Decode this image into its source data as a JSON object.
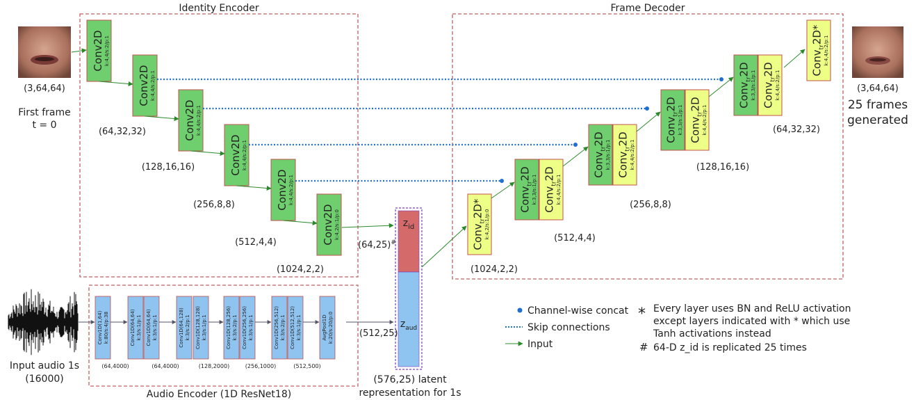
{
  "titles": {
    "identity_encoder": "Identity Encoder",
    "frame_decoder": "Frame Decoder",
    "audio_encoder": "Audio Encoder (1D ResNet18)"
  },
  "input_frame": {
    "shape": "(3,64,64)",
    "caption_line1": "First frame",
    "caption_line2": "t = 0"
  },
  "output_frames": {
    "shape": "(3,64,64)",
    "caption_line1": "25 frames",
    "caption_line2": "generated"
  },
  "input_audio": {
    "caption_line1": "Input audio 1s",
    "caption_line2": "(16000)"
  },
  "encoder_layers": [
    {
      "name": "Conv2D",
      "params": "k:4,4/s:2/p:1"
    },
    {
      "name": "Conv2D",
      "params": "k:4,4/s:2/p:1"
    },
    {
      "name": "Conv2D",
      "params": "k:4,4/s:2/p:1"
    },
    {
      "name": "Conv2D",
      "params": "k:4,4/s:2/p:1"
    },
    {
      "name": "Conv2D",
      "params": "k:4,4/s:2/p:1"
    },
    {
      "name": "Conv2D",
      "params": "k:4,2/s:1/p:0"
    }
  ],
  "encoder_dims": [
    "(64,32,32)",
    "(128,16,16)",
    "(256,8,8)",
    "(512,4,4)",
    "(1024,2,2)"
  ],
  "decoder_first": {
    "name": "Conv",
    "sub": "tr",
    "suffix": "2D*",
    "params": "k:4,2/s:1/p:0"
  },
  "decoder_pairs": [
    {
      "a_params": "k:3,3/s:1/p:1",
      "b_params": "k:4,4/s:2/p:1"
    },
    {
      "a_params": "k:3,3/s:1/p:1",
      "b_params": "k:4,4/s:2/p:1"
    },
    {
      "a_params": "k:3,3/s:1/p:1",
      "b_params": "k:4,4/s:2/p:1"
    },
    {
      "a_params": "k:3,3/s:1/p:1",
      "b_params": "k:4,4/s:2/p:1"
    }
  ],
  "decoder_layer_name": "Conv",
  "decoder_layer_sub": "tr",
  "decoder_layer_suffix": "2D",
  "decoder_last": {
    "name": "Conv",
    "sub": "tr",
    "suffix": "2D*",
    "params": "k:4,4/s:2/p:1"
  },
  "decoder_dims": [
    "(1024,2,2)",
    "(512,4,4)",
    "(256,8,8)",
    "(128,16,16)",
    "(64,32,32)"
  ],
  "latent": {
    "zid": "z",
    "zid_sub": "id",
    "zaud": "z",
    "zaud_sub": "aud",
    "zid_dim": "(64,25)",
    "zid_mark": "#",
    "zaud_dim": "(512,25)",
    "caption_line1": "(576,25) latent",
    "caption_line2": "representation for 1s"
  },
  "audio_blocks": [
    {
      "lines": [
        "Conv1D(1,64)",
        "k:80/s:4/p:38"
      ]
    },
    {
      "lines": [
        "Conv1D(64,64)",
        "k:3/s:1/p:1"
      ]
    },
    {
      "lines": [
        "Conv1D(64,64)",
        "k:3/s:1/p:1"
      ]
    },
    {
      "lines": [
        "Conv1D(64,128)",
        "k:3/s:2/p:1"
      ]
    },
    {
      "lines": [
        "Conv1D(128,128)",
        "k:3/s:1/p:1"
      ]
    },
    {
      "lines": [
        "Conv1D(128,256)",
        "k:3/s:2/p:1"
      ]
    },
    {
      "lines": [
        "Conv1D(256,256)",
        "k:3/s:1/p:1"
      ]
    },
    {
      "lines": [
        "Conv1D(256,512)",
        "k:3/s:2/p:1"
      ]
    },
    {
      "lines": [
        "Conv1D(512,512)",
        "k:3/s:1/p:1"
      ]
    },
    {
      "lines": [
        "AvgPool1D",
        "k:20/s:20/p:0"
      ]
    }
  ],
  "audio_dims": [
    "(64,4000)",
    "(64,4000)",
    "(128,2000)",
    "(256,1000)",
    "(512,500)"
  ],
  "legend": {
    "concat": "Channel-wise concat",
    "skip": "Skip connections",
    "input": "Input"
  },
  "notes": {
    "star_symbol": "*",
    "star_line1": "Every layer uses BN and ReLU activation",
    "star_line2": "except layers indicated with * which use",
    "star_line3": "Tanh activations instead",
    "hash_symbol": "#",
    "hash_line1": "64-D z_id is replicated 25 times"
  },
  "colors": {
    "green": "#6fcf6f",
    "yellow": "#eeff88",
    "red_border": "#c0504d",
    "dashed_border": "#c06060",
    "zid": "#d46a6a",
    "zaud": "#8fc3f0",
    "skip_blue": "#1f6fd1",
    "arrow_green": "#2a8a2a",
    "audio_block": "#8fc3f0"
  }
}
